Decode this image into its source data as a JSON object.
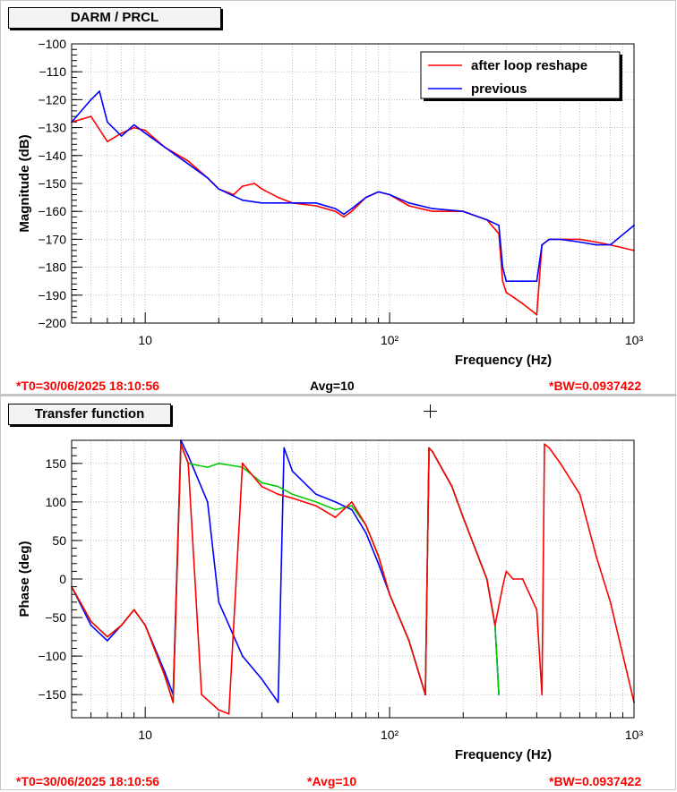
{
  "colors": {
    "red": "#ff0000",
    "blue": "#0000ff",
    "green": "#00cc00",
    "grid": "#999999"
  },
  "top_title": "DARM / PRCL",
  "bottom_title": "Transfer function",
  "status_top": {
    "t0": "*T0=30/06/2025 18:10:56",
    "avg": "Avg=10",
    "bw": "*BW=0.0937422"
  },
  "status_bottom": {
    "t0": "*T0=30/06/2025 18:10:56",
    "avg": "*Avg=10",
    "bw": "*BW=0.0937422"
  },
  "chart_data": [
    {
      "type": "line",
      "xscale": "log",
      "xlim": [
        5,
        1000
      ],
      "ylim": [
        -200,
        -100
      ],
      "xlabel": "Frequency (Hz)",
      "ylabel": "Magnitude (dB)",
      "xticks": [
        10,
        100,
        1000
      ],
      "xtick_labels": [
        "10",
        "10²",
        "10³"
      ],
      "yticks": [
        -100,
        -110,
        -120,
        -130,
        -140,
        -150,
        -160,
        -170,
        -180,
        -190,
        -200
      ],
      "grid": true,
      "legend_position": "top-right",
      "series": [
        {
          "name": "after loop reshape",
          "color": "#ff0000",
          "x": [
            5,
            6,
            7,
            8,
            9,
            10,
            12,
            15,
            18,
            20,
            23,
            25,
            28,
            30,
            35,
            40,
            50,
            60,
            65,
            70,
            80,
            90,
            100,
            120,
            150,
            200,
            250,
            280,
            290,
            300,
            350,
            400,
            420,
            450,
            500,
            600,
            700,
            800,
            1000
          ],
          "y": [
            -128,
            -126,
            -135,
            -132,
            -130,
            -131,
            -137,
            -142,
            -148,
            -152,
            -154,
            -151,
            -150,
            -152,
            -155,
            -157,
            -158,
            -160,
            -162,
            -160,
            -155,
            -153,
            -154,
            -158,
            -160,
            -160,
            -163,
            -168,
            -185,
            -189,
            -193,
            -197,
            -172,
            -170,
            -170,
            -170,
            -171,
            -172,
            -174
          ]
        },
        {
          "name": "previous",
          "color": "#0000ff",
          "x": [
            5,
            6,
            6.5,
            7,
            8,
            9,
            10,
            12,
            15,
            18,
            20,
            25,
            30,
            35,
            40,
            50,
            60,
            65,
            70,
            80,
            90,
            100,
            120,
            150,
            200,
            250,
            280,
            290,
            300,
            350,
            400,
            420,
            450,
            500,
            600,
            700,
            800,
            1000
          ],
          "y": [
            -128,
            -120,
            -117,
            -128,
            -133,
            -129,
            -132,
            -137,
            -143,
            -148,
            -152,
            -156,
            -157,
            -157,
            -157,
            -157,
            -159,
            -161,
            -159,
            -155,
            -153,
            -154,
            -157,
            -159,
            -160,
            -163,
            -165,
            -180,
            -185,
            -185,
            -185,
            -172,
            -170,
            -170,
            -171,
            -172,
            -172,
            -165
          ]
        }
      ]
    },
    {
      "type": "line",
      "xscale": "log",
      "xlim": [
        5,
        1000
      ],
      "ylim": [
        -180,
        180
      ],
      "xlabel": "Frequency (Hz)",
      "ylabel": "Phase (deg)",
      "xticks": [
        10,
        100,
        1000
      ],
      "xtick_labels": [
        "10",
        "10²",
        "10³"
      ],
      "yticks": [
        150,
        100,
        50,
        0,
        -50,
        -100,
        -150
      ],
      "grid": true,
      "series": [
        {
          "color": "#0000ff",
          "x": [
            5,
            6,
            7,
            8,
            9,
            10,
            12,
            13,
            14,
            15,
            18,
            20,
            25,
            30,
            35,
            37,
            40,
            50,
            60,
            70,
            80,
            90,
            100,
            120,
            140,
            145,
            150,
            180,
            200,
            250,
            270,
            280
          ],
          "y": [
            -10,
            -60,
            -80,
            -60,
            -40,
            -60,
            -120,
            -150,
            180,
            160,
            100,
            -30,
            -100,
            -130,
            -160,
            170,
            140,
            110,
            100,
            90,
            60,
            20,
            -20,
            -80,
            -150,
            170,
            165,
            120,
            80,
            0,
            -60,
            -150
          ]
        },
        {
          "color": "#00cc00",
          "x": [
            5,
            6,
            7,
            8,
            9,
            10,
            12,
            13,
            14,
            15,
            18,
            20,
            25,
            30,
            35,
            40,
            50,
            60,
            70,
            80,
            90,
            100,
            120,
            140,
            145,
            150,
            180,
            200,
            250,
            270,
            280
          ],
          "y": [
            -10,
            -55,
            -75,
            -60,
            -40,
            -60,
            -125,
            -160,
            175,
            150,
            145,
            150,
            145,
            125,
            120,
            110,
            100,
            90,
            95,
            70,
            30,
            -20,
            -80,
            -150,
            170,
            165,
            120,
            80,
            0,
            -60,
            -150
          ]
        },
        {
          "color": "#ff0000",
          "x": [
            5,
            6,
            7,
            8,
            9,
            10,
            12,
            13,
            14,
            15,
            17,
            20,
            22,
            25,
            30,
            35,
            40,
            50,
            60,
            70,
            80,
            90,
            100,
            120,
            140,
            145,
            150,
            180,
            200,
            250,
            270,
            290,
            300,
            320,
            350,
            400,
            420,
            430,
            450,
            500,
            600,
            700,
            800,
            1000
          ],
          "y": [
            -10,
            -55,
            -75,
            -60,
            -40,
            -60,
            -125,
            -160,
            175,
            150,
            -150,
            -170,
            -175,
            150,
            120,
            110,
            105,
            95,
            80,
            100,
            70,
            30,
            -20,
            -80,
            -150,
            170,
            165,
            120,
            80,
            0,
            -60,
            -10,
            10,
            0,
            0,
            -40,
            -150,
            175,
            170,
            150,
            110,
            30,
            -30,
            -160
          ]
        }
      ]
    }
  ]
}
